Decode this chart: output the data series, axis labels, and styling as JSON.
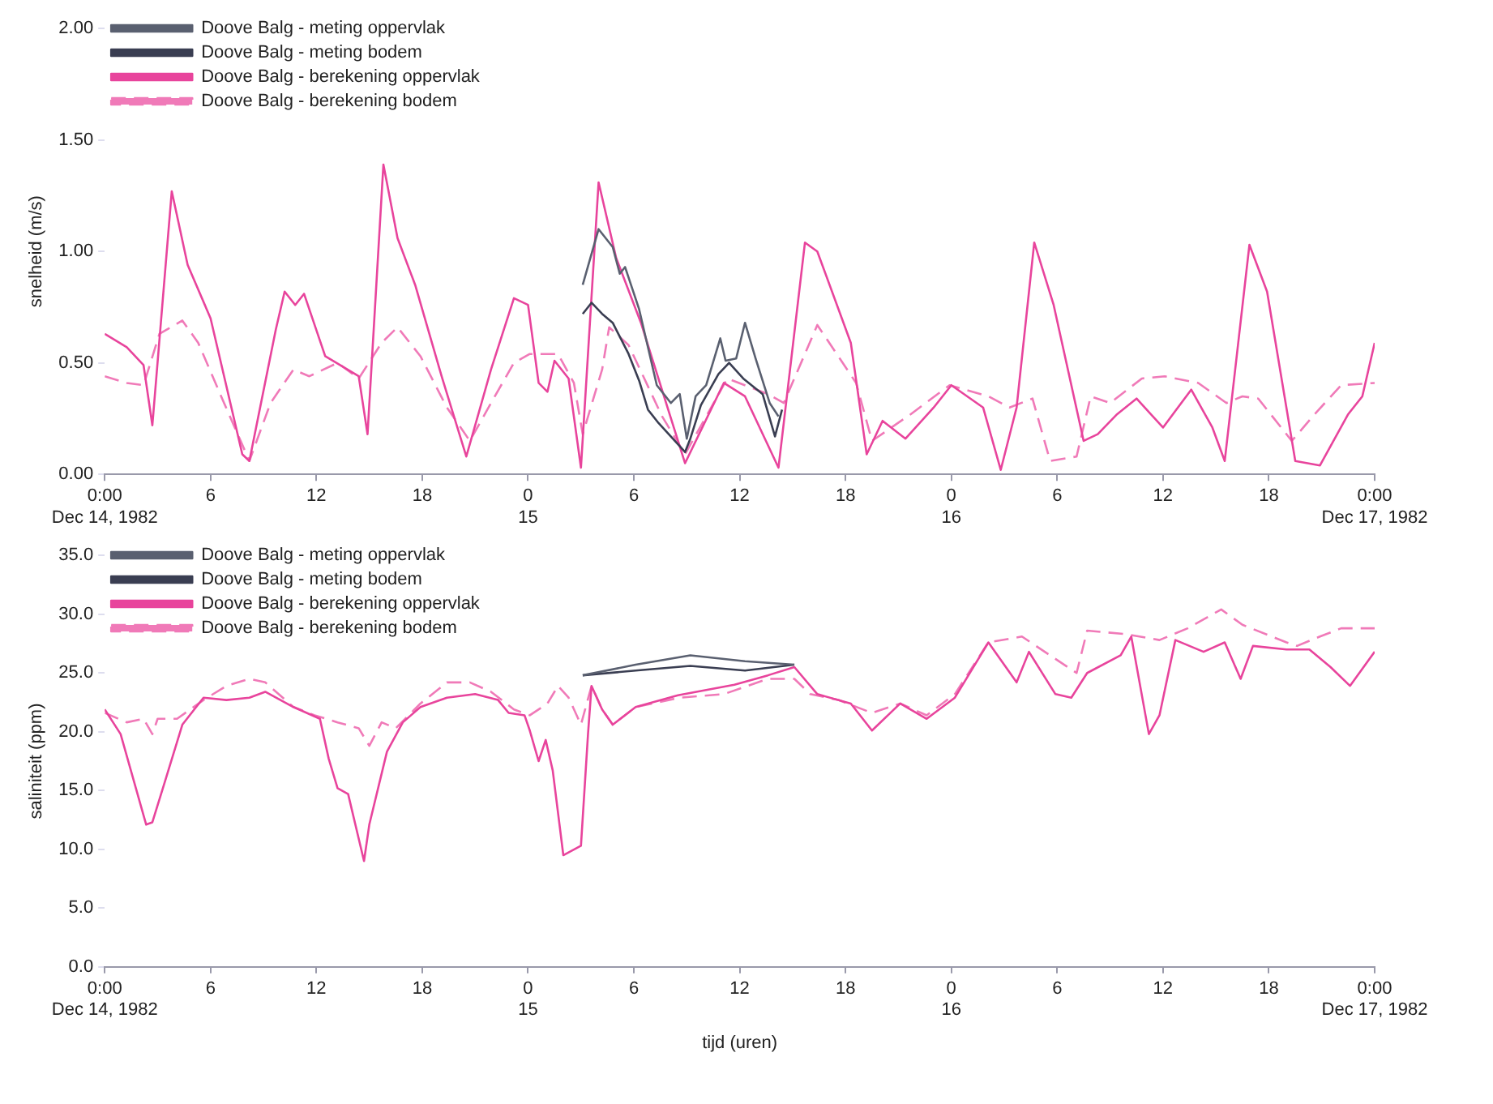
{
  "chart_data": [
    {
      "type": "line",
      "ylabel": "snelheid (m/s)",
      "xlim": [
        "1982-12-14T00:00",
        "1982-12-17T00:00"
      ],
      "ylim": [
        0,
        2
      ],
      "xticks": [
        {
          "value": "1982-12-14T00:00",
          "label": "0:00\nDec 14, 1982"
        },
        {
          "value": "1982-12-14T06:00",
          "label": "6"
        },
        {
          "value": "1982-12-14T12:00",
          "label": "12"
        },
        {
          "value": "1982-12-14T18:00",
          "label": "18"
        },
        {
          "value": "1982-12-15T00:00",
          "label": "0\n15"
        },
        {
          "value": "1982-12-15T06:00",
          "label": "6"
        },
        {
          "value": "1982-12-15T12:00",
          "label": "12"
        },
        {
          "value": "1982-12-15T18:00",
          "label": "18"
        },
        {
          "value": "1982-12-16T00:00",
          "label": "0\n16"
        },
        {
          "value": "1982-12-16T06:00",
          "label": "6"
        },
        {
          "value": "1982-12-16T12:00",
          "label": "12"
        },
        {
          "value": "1982-12-16T18:00",
          "label": "18"
        },
        {
          "value": "1982-12-17T00:00",
          "label": "0:00\nDec 17, 1982"
        }
      ],
      "yticks": [
        {
          "value": 0,
          "label": "0.00"
        },
        {
          "value": 0.5,
          "label": "0.50"
        },
        {
          "value": 1,
          "label": "1.00"
        },
        {
          "value": 1.5,
          "label": "1.50"
        },
        {
          "value": 2,
          "label": "2.00"
        }
      ],
      "grid": false,
      "legend": "top left",
      "marker": "none",
      "series": [
        {
          "name": "Doove Balg - meting oppervlak",
          "color": "#5a6070",
          "line_style": "solid",
          "x": [
            "1982-12-15T03:06",
            "1982-12-15T04:00",
            "1982-12-15T04:48",
            "1982-12-15T05:12",
            "1982-12-15T05:30",
            "1982-12-15T06:18",
            "1982-12-15T07:18",
            "1982-12-15T08:06",
            "1982-12-15T08:36",
            "1982-12-15T09:00",
            "1982-12-15T09:30",
            "1982-12-15T10:06",
            "1982-12-15T10:54",
            "1982-12-15T11:12",
            "1982-12-15T11:48",
            "1982-12-15T12:18",
            "1982-12-15T12:54",
            "1982-12-15T13:42",
            "1982-12-15T14:12"
          ],
          "values": [
            0.85,
            1.1,
            1.02,
            0.9,
            0.93,
            0.74,
            0.4,
            0.32,
            0.36,
            0.16,
            0.35,
            0.4,
            0.61,
            0.51,
            0.52,
            0.68,
            0.52,
            0.32,
            0.26
          ]
        },
        {
          "name": "Doove Balg - meting bodem",
          "color": "#3a3e52",
          "line_style": "solid",
          "x": [
            "1982-12-15T03:06",
            "1982-12-15T03:36",
            "1982-12-15T04:12",
            "1982-12-15T04:48",
            "1982-12-15T05:42",
            "1982-12-15T06:18",
            "1982-12-15T06:48",
            "1982-12-15T07:24",
            "1982-12-15T08:54",
            "1982-12-15T09:12",
            "1982-12-15T09:48",
            "1982-12-15T10:48",
            "1982-12-15T11:24",
            "1982-12-15T12:12",
            "1982-12-15T13:18",
            "1982-12-15T14:00",
            "1982-12-15T14:24"
          ],
          "values": [
            0.72,
            0.77,
            0.72,
            0.68,
            0.54,
            0.42,
            0.29,
            0.23,
            0.1,
            0.16,
            0.31,
            0.45,
            0.5,
            0.43,
            0.36,
            0.17,
            0.29
          ]
        },
        {
          "name": "Doove Balg - berekening oppervlak",
          "color": "#e8449c",
          "line_style": "solid",
          "x": [
            "1982-12-14T00:00",
            "1982-12-14T01:15",
            "1982-12-14T02:12",
            "1982-12-14T02:42",
            "1982-12-14T03:48",
            "1982-12-14T04:42",
            "1982-12-14T06:00",
            "1982-12-14T07:48",
            "1982-12-14T08:12",
            "1982-12-14T09:42",
            "1982-12-14T10:12",
            "1982-12-14T10:48",
            "1982-12-14T11:18",
            "1982-12-14T12:30",
            "1982-12-14T14:24",
            "1982-12-14T14:54",
            "1982-12-14T15:48",
            "1982-12-14T16:36",
            "1982-12-14T17:36",
            "1982-12-14T19:06",
            "1982-12-14T20:30",
            "1982-12-14T21:54",
            "1982-12-14T23:12",
            "1982-12-15T00:00",
            "1982-12-15T00:36",
            "1982-12-15T01:06",
            "1982-12-15T01:30",
            "1982-12-15T02:18",
            "1982-12-15T03:00",
            "1982-12-15T04:00",
            "1982-12-15T05:00",
            "1982-12-15T06:24",
            "1982-12-15T08:54",
            "1982-12-15T11:06",
            "1982-12-15T12:18",
            "1982-12-15T14:12",
            "1982-12-15T15:42",
            "1982-12-15T16:24",
            "1982-12-15T18:18",
            "1982-12-15T19:12",
            "1982-12-15T20:06",
            "1982-12-15T21:24",
            "1982-12-15T23:00",
            "1982-12-16T00:00",
            "1982-12-16T01:48",
            "1982-12-16T02:48",
            "1982-12-16T03:42",
            "1982-12-16T04:42",
            "1982-12-16T05:48",
            "1982-12-16T07:30",
            "1982-12-16T08:18",
            "1982-12-16T09:24",
            "1982-12-16T10:30",
            "1982-12-16T12:00",
            "1982-12-16T13:36",
            "1982-12-16T14:48",
            "1982-12-16T15:30",
            "1982-12-16T16:54",
            "1982-12-16T17:54",
            "1982-12-16T19:30",
            "1982-12-16T20:54",
            "1982-12-16T22:30",
            "1982-12-16T23:18",
            "1982-12-17T00:00"
          ],
          "values": [
            0.63,
            0.57,
            0.49,
            0.22,
            1.27,
            0.94,
            0.7,
            0.09,
            0.06,
            0.65,
            0.82,
            0.76,
            0.81,
            0.53,
            0.44,
            0.18,
            1.39,
            1.06,
            0.85,
            0.44,
            0.08,
            0.47,
            0.79,
            0.76,
            0.41,
            0.37,
            0.51,
            0.43,
            0.03,
            1.31,
            0.97,
            0.68,
            0.05,
            0.41,
            0.35,
            0.03,
            1.04,
            1.0,
            0.59,
            0.09,
            0.24,
            0.16,
            0.3,
            0.4,
            0.3,
            0.02,
            0.3,
            1.04,
            0.76,
            0.15,
            0.18,
            0.27,
            0.34,
            0.21,
            0.38,
            0.21,
            0.06,
            1.03,
            0.82,
            0.06,
            0.04,
            0.27,
            0.35,
            0.59
          ]
        },
        {
          "name": "Doove Balg - berekening bodem",
          "color": "#f07ab8",
          "line_style": "dashed",
          "x": [
            "1982-12-14T00:00",
            "1982-12-14T01:15",
            "1982-12-14T02:12",
            "1982-12-14T03:06",
            "1982-12-14T04:24",
            "1982-12-14T05:18",
            "1982-12-14T06:36",
            "1982-12-14T08:12",
            "1982-12-14T09:24",
            "1982-12-14T10:42",
            "1982-12-14T11:36",
            "1982-12-14T13:12",
            "1982-12-14T14:24",
            "1982-12-14T15:42",
            "1982-12-14T16:36",
            "1982-12-14T17:54",
            "1982-12-14T19:24",
            "1982-12-14T20:42",
            "1982-12-14T21:54",
            "1982-12-14T23:12",
            "1982-12-15T00:06",
            "1982-12-15T01:42",
            "1982-12-15T02:36",
            "1982-12-15T03:06",
            "1982-12-15T04:12",
            "1982-12-15T04:36",
            "1982-12-15T05:42",
            "1982-12-15T07:36",
            "1982-12-15T08:54",
            "1982-12-15T11:18",
            "1982-12-15T13:36",
            "1982-12-15T14:30",
            "1982-12-15T16:24",
            "1982-12-15T18:36",
            "1982-12-15T19:30",
            "1982-12-15T21:42",
            "1982-12-15T23:54",
            "1982-12-16T02:06",
            "1982-12-16T03:18",
            "1982-12-16T04:36",
            "1982-12-16T05:36",
            "1982-12-16T07:06",
            "1982-12-16T07:54",
            "1982-12-16T09:00",
            "1982-12-16T10:48",
            "1982-12-16T12:06",
            "1982-12-16T14:00",
            "1982-12-16T15:36",
            "1982-12-16T16:30",
            "1982-12-16T17:24",
            "1982-12-16T19:18",
            "1982-12-16T20:36",
            "1982-12-16T22:06",
            "1982-12-17T00:00"
          ],
          "values": [
            0.44,
            0.41,
            0.4,
            0.63,
            0.69,
            0.59,
            0.35,
            0.06,
            0.32,
            0.47,
            0.44,
            0.5,
            0.43,
            0.59,
            0.66,
            0.53,
            0.3,
            0.15,
            0.32,
            0.5,
            0.54,
            0.54,
            0.41,
            0.18,
            0.47,
            0.66,
            0.58,
            0.26,
            0.09,
            0.43,
            0.36,
            0.32,
            0.67,
            0.41,
            0.15,
            0.27,
            0.4,
            0.35,
            0.3,
            0.34,
            0.06,
            0.08,
            0.35,
            0.32,
            0.43,
            0.44,
            0.41,
            0.32,
            0.35,
            0.34,
            0.15,
            0.27,
            0.4,
            0.41
          ]
        }
      ]
    },
    {
      "type": "line",
      "ylabel": "saliniteit (ppm)",
      "xlabel": "tijd (uren)",
      "xlim": [
        "1982-12-14T00:00",
        "1982-12-17T00:00"
      ],
      "ylim": [
        0,
        35
      ],
      "xticks": [
        {
          "value": "1982-12-14T00:00",
          "label": "0:00\nDec 14, 1982"
        },
        {
          "value": "1982-12-14T06:00",
          "label": "6"
        },
        {
          "value": "1982-12-14T12:00",
          "label": "12"
        },
        {
          "value": "1982-12-14T18:00",
          "label": "18"
        },
        {
          "value": "1982-12-15T00:00",
          "label": "0\n15"
        },
        {
          "value": "1982-12-15T06:00",
          "label": "6"
        },
        {
          "value": "1982-12-15T12:00",
          "label": "12"
        },
        {
          "value": "1982-12-15T18:00",
          "label": "18"
        },
        {
          "value": "1982-12-16T00:00",
          "label": "0\n16"
        },
        {
          "value": "1982-12-16T06:00",
          "label": "6"
        },
        {
          "value": "1982-12-16T12:00",
          "label": "12"
        },
        {
          "value": "1982-12-16T18:00",
          "label": "18"
        },
        {
          "value": "1982-12-17T00:00",
          "label": "0:00\nDec 17, 1982"
        }
      ],
      "yticks": [
        {
          "value": 0,
          "label": "0.0"
        },
        {
          "value": 5,
          "label": "5.0"
        },
        {
          "value": 10,
          "label": "10.0"
        },
        {
          "value": 15,
          "label": "15.0"
        },
        {
          "value": 20,
          "label": "20.0"
        },
        {
          "value": 25,
          "label": "25.0"
        },
        {
          "value": 30,
          "label": "30.0"
        },
        {
          "value": 35,
          "label": "35.0"
        }
      ],
      "grid": false,
      "legend": "top left",
      "marker": "none",
      "series": [
        {
          "name": "Doove Balg - meting oppervlak",
          "color": "#5a6070",
          "line_style": "solid",
          "x": [
            "1982-12-15T03:06",
            "1982-12-15T06:06",
            "1982-12-15T09:12",
            "1982-12-15T12:18",
            "1982-12-15T15:06"
          ],
          "values": [
            24.8,
            25.7,
            26.5,
            26.0,
            25.7
          ]
        },
        {
          "name": "Doove Balg - meting bodem",
          "color": "#3a3e52",
          "line_style": "solid",
          "x": [
            "1982-12-15T03:06",
            "1982-12-15T06:06",
            "1982-12-15T09:12",
            "1982-12-15T12:18",
            "1982-12-15T15:06"
          ],
          "values": [
            24.8,
            25.2,
            25.6,
            25.2,
            25.7
          ]
        },
        {
          "name": "Doove Balg - berekening oppervlak",
          "color": "#e8449c",
          "line_style": "solid",
          "x": [
            "1982-12-14T00:00",
            "1982-12-14T00:54",
            "1982-12-14T02:21",
            "1982-12-14T02:42",
            "1982-12-14T03:24",
            "1982-12-14T04:24",
            "1982-12-14T05:36",
            "1982-12-14T06:54",
            "1982-12-14T08:12",
            "1982-12-14T09:06",
            "1982-12-14T10:42",
            "1982-12-14T12:12",
            "1982-12-14T12:42",
            "1982-12-14T13:12",
            "1982-12-14T13:48",
            "1982-12-14T14:42",
            "1982-12-14T15:00",
            "1982-12-14T16:00",
            "1982-12-14T16:54",
            "1982-12-14T17:54",
            "1982-12-14T19:24",
            "1982-12-14T21:00",
            "1982-12-14T22:18",
            "1982-12-14T22:54",
            "1982-12-14T23:48",
            "1982-12-15T00:06",
            "1982-12-15T00:36",
            "1982-12-15T01:00",
            "1982-12-15T01:24",
            "1982-12-15T02:00",
            "1982-12-15T03:00",
            "1982-12-15T03:24",
            "1982-12-15T03:36",
            "1982-12-15T04:12",
            "1982-12-15T04:48",
            "1982-12-15T06:06",
            "1982-12-15T08:30",
            "1982-12-15T11:42",
            "1982-12-15T13:36",
            "1982-12-15T15:06",
            "1982-12-15T16:24",
            "1982-12-15T18:18",
            "1982-12-15T19:30",
            "1982-12-15T21:06",
            "1982-12-15T22:36",
            "1982-12-16T00:12",
            "1982-12-16T02:06",
            "1982-12-16T03:42",
            "1982-12-16T04:24",
            "1982-12-16T05:54",
            "1982-12-16T06:48",
            "1982-12-16T07:42",
            "1982-12-16T09:36",
            "1982-12-16T10:12",
            "1982-12-16T11:12",
            "1982-12-16T11:48",
            "1982-12-16T12:42",
            "1982-12-16T14:18",
            "1982-12-16T15:30",
            "1982-12-16T16:24",
            "1982-12-16T17:06",
            "1982-12-16T19:00",
            "1982-12-16T20:18",
            "1982-12-16T21:30",
            "1982-12-16T22:36",
            "1982-12-17T00:00"
          ],
          "values": [
            21.9,
            19.8,
            12.1,
            12.3,
            15.7,
            20.6,
            22.9,
            22.7,
            22.9,
            23.4,
            22.1,
            21.1,
            17.7,
            15.2,
            14.7,
            9.0,
            12.1,
            18.3,
            20.8,
            22.1,
            22.9,
            23.2,
            22.7,
            21.6,
            21.4,
            20.1,
            17.5,
            19.3,
            16.7,
            9.5,
            10.3,
            19.8,
            23.9,
            21.9,
            20.6,
            22.1,
            23.1,
            24.0,
            24.8,
            25.5,
            23.2,
            22.4,
            20.1,
            22.4,
            21.1,
            22.9,
            27.6,
            24.2,
            26.8,
            23.2,
            22.9,
            25.0,
            26.5,
            28.1,
            19.8,
            21.4,
            27.8,
            26.8,
            27.6,
            24.5,
            27.3,
            27.0,
            27.0,
            25.5,
            23.9,
            26.8
          ]
        },
        {
          "name": "Doove Balg - berekening bodem",
          "color": "#f07ab8",
          "line_style": "dashed",
          "x": [
            "1982-12-14T00:00",
            "1982-12-14T01:15",
            "1982-12-14T02:12",
            "1982-12-14T02:42",
            "1982-12-14T03:00",
            "1982-12-14T04:06",
            "1982-12-14T05:36",
            "1982-12-14T06:54",
            "1982-12-14T08:12",
            "1982-12-14T09:06",
            "1982-12-14T10:42",
            "1982-12-14T11:54",
            "1982-12-14T13:12",
            "1982-12-14T14:24",
            "1982-12-14T15:00",
            "1982-12-14T15:42",
            "1982-12-14T16:30",
            "1982-12-14T17:54",
            "1982-12-14T19:24",
            "1982-12-14T20:42",
            "1982-12-14T21:54",
            "1982-12-14T23:12",
            "1982-12-15T00:06",
            "1982-12-15T01:06",
            "1982-12-15T01:42",
            "1982-12-15T02:18",
            "1982-12-15T03:00",
            "1982-12-15T03:36",
            "1982-12-15T04:12",
            "1982-12-15T04:48",
            "1982-12-15T06:06",
            "1982-12-15T08:36",
            "1982-12-15T11:06",
            "1982-12-15T13:36",
            "1982-12-15T15:06",
            "1982-12-15T16:00",
            "1982-12-15T17:36",
            "1982-12-15T19:30",
            "1982-12-15T21:06",
            "1982-12-15T22:36",
            "1982-12-16T00:12",
            "1982-12-16T02:06",
            "1982-12-16T04:00",
            "1982-12-16T07:06",
            "1982-12-16T07:42",
            "1982-12-16T09:54",
            "1982-12-16T11:48",
            "1982-12-16T13:24",
            "1982-12-16T15:18",
            "1982-12-16T16:30",
            "1982-12-16T19:00",
            "1982-12-16T19:36",
            "1982-12-16T20:54",
            "1982-12-16T22:06",
            "1982-12-17T00:00"
          ],
          "values": [
            21.6,
            20.8,
            21.1,
            19.8,
            21.1,
            21.1,
            22.7,
            23.9,
            24.5,
            24.2,
            22.1,
            21.4,
            20.8,
            20.3,
            18.8,
            20.8,
            20.3,
            22.4,
            24.2,
            24.2,
            23.4,
            21.9,
            21.4,
            22.4,
            23.9,
            22.9,
            20.6,
            23.9,
            21.9,
            20.6,
            22.1,
            22.9,
            23.2,
            24.5,
            24.5,
            23.2,
            22.7,
            21.6,
            22.4,
            21.4,
            23.2,
            27.6,
            28.1,
            25.0,
            28.6,
            28.3,
            27.8,
            28.8,
            30.4,
            29.1,
            27.6,
            27.3,
            28.1,
            28.8,
            28.8
          ]
        }
      ]
    }
  ]
}
